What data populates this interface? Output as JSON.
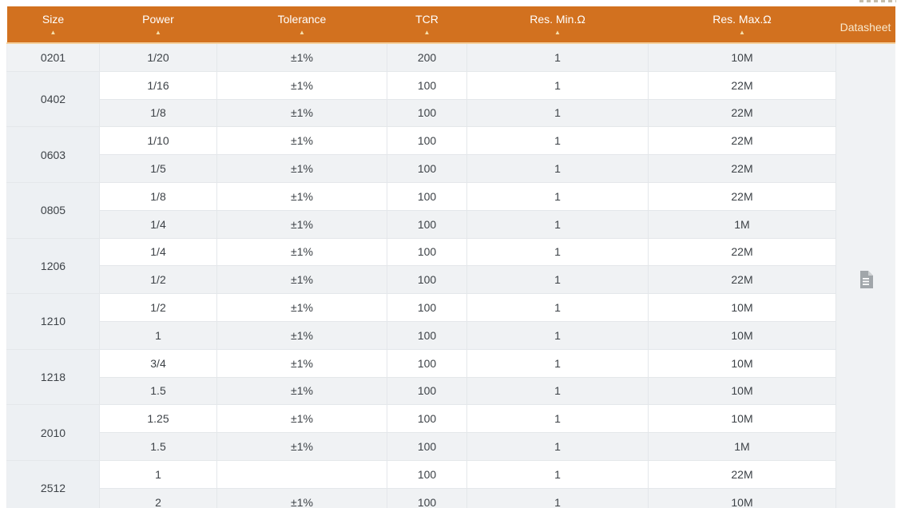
{
  "table": {
    "columns": [
      {
        "label": "Size",
        "sortable": true
      },
      {
        "label": "Power",
        "sortable": true
      },
      {
        "label": "Tolerance",
        "sortable": true
      },
      {
        "label": "TCR",
        "sortable": true
      },
      {
        "label": "Res. Min.Ω",
        "sortable": true
      },
      {
        "label": "Res. Max.Ω",
        "sortable": true
      },
      {
        "label": "Datasheet",
        "sortable": false
      }
    ],
    "sort_arrow_glyph": "▲",
    "groups": [
      {
        "size": "0201",
        "rows": [
          [
            "1/20",
            "±1%",
            "200",
            "1",
            "10M"
          ]
        ]
      },
      {
        "size": "0402",
        "rows": [
          [
            "1/16",
            "±1%",
            "100",
            "1",
            "22M"
          ],
          [
            "1/8",
            "±1%",
            "100",
            "1",
            "22M"
          ]
        ]
      },
      {
        "size": "0603",
        "rows": [
          [
            "1/10",
            "±1%",
            "100",
            "1",
            "22M"
          ],
          [
            "1/5",
            "±1%",
            "100",
            "1",
            "22M"
          ]
        ]
      },
      {
        "size": "0805",
        "rows": [
          [
            "1/8",
            "±1%",
            "100",
            "1",
            "22M"
          ],
          [
            "1/4",
            "±1%",
            "100",
            "1",
            "1M"
          ]
        ]
      },
      {
        "size": "1206",
        "rows": [
          [
            "1/4",
            "±1%",
            "100",
            "1",
            "22M"
          ],
          [
            "1/2",
            "±1%",
            "100",
            "1",
            "22M"
          ]
        ]
      },
      {
        "size": "1210",
        "rows": [
          [
            "1/2",
            "±1%",
            "100",
            "1",
            "10M"
          ],
          [
            "1",
            "±1%",
            "100",
            "1",
            "10M"
          ]
        ]
      },
      {
        "size": "1218",
        "rows": [
          [
            "3/4",
            "±1%",
            "100",
            "1",
            "10M"
          ],
          [
            "1.5",
            "±1%",
            "100",
            "1",
            "10M"
          ]
        ]
      },
      {
        "size": "2010",
        "rows": [
          [
            "1.25",
            "±1%",
            "100",
            "1",
            "10M"
          ],
          [
            "1.5",
            "±1%",
            "100",
            "1",
            "1M"
          ]
        ]
      },
      {
        "size": "2512",
        "rows": [
          [
            "1",
            "",
            "100",
            "1",
            "22M"
          ],
          [
            "2",
            "±1%",
            "100",
            "1",
            "10M"
          ]
        ]
      }
    ],
    "datasheet": {
      "icon": "file-text-icon"
    }
  },
  "colors": {
    "header_bg": "#d2711f",
    "header_text": "#ffffff",
    "datasheet_header_text": "#f8e9ce",
    "header_underline": "#f5cf9b",
    "sort_arrow": "#f6e0ac",
    "row_stripe_bg": "#f0f2f4",
    "row_plain_bg": "#ffffff",
    "size_cell_bg": "#edf0f3",
    "datasheet_cell_bg": "#edeff1",
    "cell_border": "#e4e7ea",
    "body_text": "#3d4247",
    "file_icon": "#a1a6aa"
  }
}
